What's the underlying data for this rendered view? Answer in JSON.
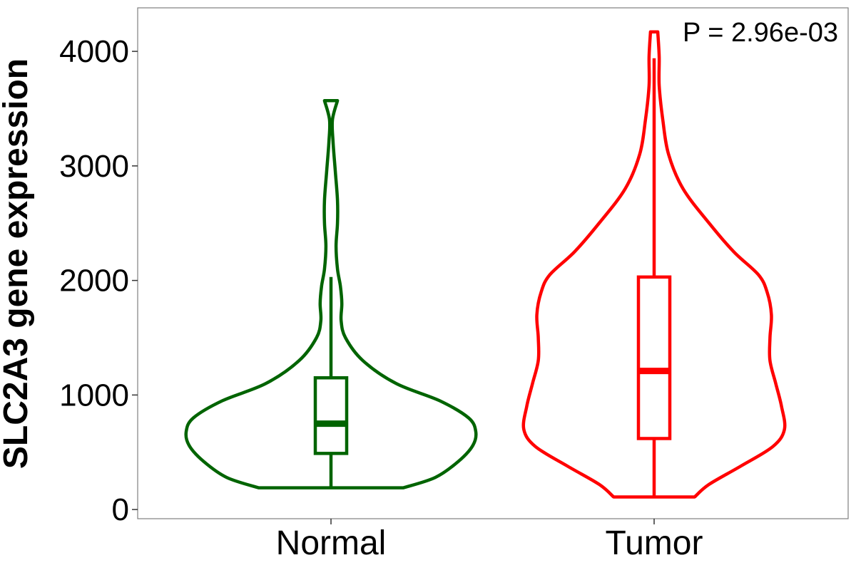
{
  "chart_data": {
    "type": "violin",
    "title": "",
    "xlabel": "",
    "ylabel": "SLC2A3 gene expression",
    "ylim": [
      -80,
      4380
    ],
    "yticks": [
      0,
      1000,
      2000,
      3000,
      4000
    ],
    "grid": false,
    "annotation": "P = 2.96e-03",
    "categories": [
      "Normal",
      "Tumor"
    ],
    "groups": [
      {
        "name": "Normal",
        "color": "#006400",
        "min": 190,
        "q1": 490,
        "median": 750,
        "q3": 1150,
        "whisker_high": 2030,
        "max": 3570,
        "density_profile": [
          [
            190,
            0.5
          ],
          [
            280,
            0.72
          ],
          [
            420,
            0.88
          ],
          [
            560,
            0.98
          ],
          [
            680,
            1.0
          ],
          [
            800,
            0.95
          ],
          [
            950,
            0.75
          ],
          [
            1100,
            0.45
          ],
          [
            1300,
            0.22
          ],
          [
            1500,
            0.1
          ],
          [
            1650,
            0.07
          ],
          [
            1800,
            0.075
          ],
          [
            1950,
            0.065
          ],
          [
            2100,
            0.045
          ],
          [
            2300,
            0.035
          ],
          [
            2500,
            0.045
          ],
          [
            2700,
            0.045
          ],
          [
            2950,
            0.03
          ],
          [
            3200,
            0.015
          ],
          [
            3400,
            0.01
          ],
          [
            3570,
            0.045
          ]
        ]
      },
      {
        "name": "Tumor",
        "color": "#ff0000",
        "min": 110,
        "q1": 620,
        "median": 1210,
        "q3": 2030,
        "whisker_high": 3940,
        "max": 4170,
        "density_profile": [
          [
            110,
            0.28
          ],
          [
            220,
            0.38
          ],
          [
            380,
            0.6
          ],
          [
            550,
            0.82
          ],
          [
            700,
            0.9
          ],
          [
            900,
            0.88
          ],
          [
            1100,
            0.84
          ],
          [
            1300,
            0.8
          ],
          [
            1500,
            0.8
          ],
          [
            1700,
            0.81
          ],
          [
            1900,
            0.78
          ],
          [
            2050,
            0.72
          ],
          [
            2250,
            0.55
          ],
          [
            2500,
            0.38
          ],
          [
            2800,
            0.2
          ],
          [
            3100,
            0.1
          ],
          [
            3400,
            0.06
          ],
          [
            3700,
            0.035
          ],
          [
            3950,
            0.035
          ],
          [
            4170,
            0.025
          ]
        ]
      }
    ]
  }
}
